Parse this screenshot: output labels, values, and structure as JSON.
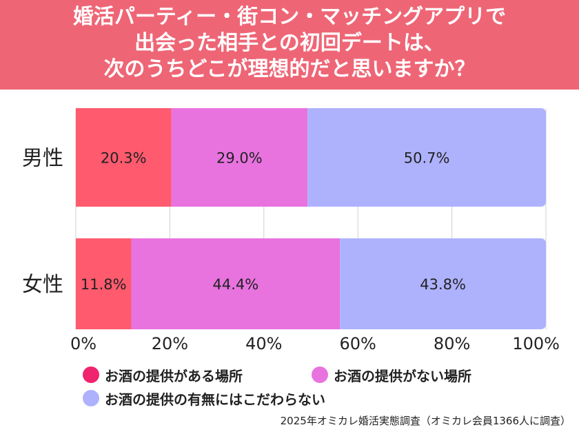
{
  "title_lines": [
    "婚活パーティー・街コン・マッチングアプリで",
    "出会った相手との初回デートは、",
    "次のうちどこが理想的だと思いますか？"
  ],
  "chart_data": {
    "type": "bar",
    "orientation": "horizontal",
    "stacked": true,
    "percent_scale": true,
    "categories": [
      "男性",
      "女性"
    ],
    "series": [
      {
        "name": "お酒の提供がある場所",
        "values": [
          20.3,
          11.8
        ],
        "color": "#ff5a6e"
      },
      {
        "name": "お酒の提供がない場所",
        "values": [
          29.0,
          44.4
        ],
        "color": "#e873df"
      },
      {
        "name": "お酒の提供の有無にはこだわらない",
        "values": [
          50.7,
          43.8
        ],
        "color": "#aeb2fd"
      }
    ],
    "data_labels": [
      [
        "20.3%",
        "11.8%"
      ],
      [
        "29.0%",
        "44.4%"
      ],
      [
        "50.7%",
        "43.8%"
      ]
    ],
    "x_ticks": [
      "0%",
      "20%",
      "40%",
      "60%",
      "80%",
      "100%"
    ],
    "xlim": [
      0,
      100
    ],
    "grid": true,
    "legend_position": "bottom"
  },
  "legend_dot_colors": [
    "#f0236e",
    "#e873df",
    "#aeb2fd"
  ],
  "source": "2025年オミカレ婚活実態調査（オミカレ会員1366人に調査）"
}
